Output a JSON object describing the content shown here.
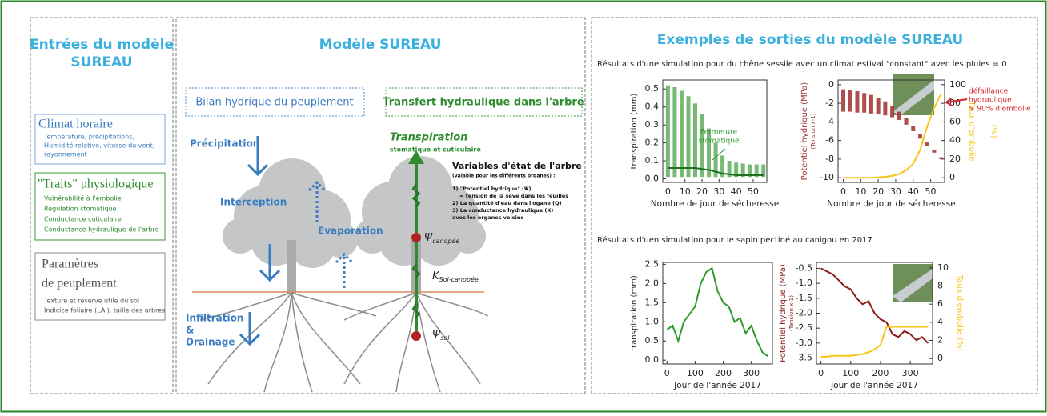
{
  "inputs": {
    "title_lines": [
      "Entrées  du modèle",
      "SUREAU"
    ],
    "climate": {
      "title": "Climat horaire",
      "lines": [
        "Température, précipitations,",
        "Humidité relative, vitesse du vent,",
        "rayonnement"
      ]
    },
    "traits": {
      "title": "\"Traits\" physiologique",
      "lines": [
        "Vulnérabilité à l'embolie",
        "Régulation stomatique",
        "Conductance cuticulaire",
        "Conductance hydraulique de l'arbre"
      ]
    },
    "stand": {
      "title_lines": [
        "Paramètres",
        "de peuplement"
      ],
      "lines": [
        "Texture et réserve utile du sol",
        "Indicice foliaire (LAI), taille des arbres"
      ]
    }
  },
  "model": {
    "title": "Modèle SUREAU",
    "water_balance": "Bilan hydrique du peuplement",
    "hydraulic_transfer": "Transfert hydraulique dans l'arbre",
    "precipitation": "Précipitation",
    "interception": "Interception",
    "evaporation": "Evaporation",
    "infiltration_lines": [
      "Infiltration",
      "&",
      "Drainage"
    ],
    "transpiration": "Transpiration",
    "transpiration_sub": "stomatique et cuticulaire",
    "psi_canopy": {
      "symbol": "Ψ",
      "sub": "canopée"
    },
    "k_soil": {
      "symbol": "K",
      "sub": "Sol-canopée"
    },
    "psi_soil": {
      "symbol": "Ψ",
      "sub": "sol"
    },
    "state_vars": {
      "title": "Variables d'état de l'arbre",
      "subtitle": "(valable pour les différents organes) :",
      "lines": [
        "1) \"Potentiel hydrique\" (Ψ)",
        "    = tension de la sève dans les feuilles",
        "2) La quantité d'eau dans l'ogane (Q)",
        "3) La conductance hydraulique (K)",
        "avec les organes voisins"
      ]
    }
  },
  "outputs": {
    "title": "Exemples de sorties  du modèle SUREAU",
    "oak_caption": "Résultats d'une simulation pour du chêne sessile avec un climat estival \"constant\" avec les pluies  = 0",
    "fir_caption": "Résultats d'uen simulation pour le sapin pectiné au canigou en 2017",
    "charts": [
      {
        "xlabel": "Nombre de jour de sécheresse",
        "ylabel": "transpiration (mm)",
        "xlim": [
          -3,
          58
        ],
        "ylim": [
          -0.02,
          0.55
        ],
        "xticks": [
          0,
          10,
          20,
          30,
          40,
          50
        ],
        "yticks": [
          {
            "value": 0,
            "label": "0.0"
          },
          0.1,
          0.2,
          0.3,
          0.4,
          0.5
        ],
        "x": [
          0,
          4,
          8,
          12,
          16,
          20,
          24,
          28,
          32,
          36,
          40,
          44,
          48,
          52,
          56
        ],
        "range": {
          "color": "#5fae5f",
          "low": [
            0.01,
            0.01,
            0.01,
            0.01,
            0.01,
            0.01,
            0.01,
            0.01,
            0.01,
            0.01,
            0.01,
            0.01,
            0.01,
            0.01,
            0.01
          ],
          "high": [
            0.52,
            0.51,
            0.49,
            0.46,
            0.42,
            0.36,
            0.28,
            0.2,
            0.13,
            0.1,
            0.09,
            0.085,
            0.08,
            0.08,
            0.08
          ]
        },
        "series": [
          {
            "color": "#1f6f1f",
            "values": [
              0.06,
              0.06,
              0.06,
              0.06,
              0.06,
              0.055,
              0.05,
              0.04,
              0.03,
              0.025,
              0.02,
              0.02,
              0.02,
              0.02,
              0.02
            ]
          }
        ],
        "annotation_lines": [
          "Fermeture",
          "stomatique"
        ],
        "annotation_color": "#2e9a2e"
      },
      {
        "xlabel": "Nombre de jour de sécheresse",
        "ylabel": "Potentiel hydrique (MPa)",
        "ylabel_sub": "(Tension x-1)",
        "y2label": "Taux d'embolie",
        "y2label_sub": "(%)",
        "axis_colored": true,
        "xlim": [
          -3,
          58
        ],
        "ylim": [
          -10.5,
          0.5
        ],
        "y2lim": [
          -5,
          105
        ],
        "xticks": [
          0,
          10,
          20,
          30,
          40,
          50
        ],
        "yticks": [
          0,
          -2,
          -4,
          -6,
          -8,
          -10
        ],
        "y2ticks": [
          0,
          20,
          40,
          60,
          80,
          100
        ],
        "x": [
          0,
          4,
          8,
          12,
          16,
          20,
          24,
          28,
          32,
          36,
          40,
          44,
          48,
          52,
          56
        ],
        "range": {
          "color": "#a0302f",
          "low": [
            -2.9,
            -2.9,
            -3.0,
            -3.0,
            -3.1,
            -3.2,
            -3.3,
            -3.5,
            -3.8,
            -4.3,
            -5.0,
            -5.8,
            -6.6,
            -7.3,
            -8.0
          ],
          "high": [
            -0.5,
            -0.6,
            -0.7,
            -0.9,
            -1.1,
            -1.4,
            -1.8,
            -2.3,
            -2.9,
            -3.6,
            -4.4,
            -5.3,
            -6.2,
            -7.0,
            -7.8
          ]
        },
        "series": [
          {
            "color": "#f5c518",
            "axis": "y2",
            "values": [
              0,
              0,
              0,
              0,
              0,
              0.5,
              1,
              2,
              4,
              8,
              15,
              30,
              55,
              75,
              90
            ]
          }
        ],
        "annotation_lines": [
          "défaillance",
          "hydraulique",
          "> 90% d'embolie"
        ],
        "annotation_color": "#d9232a"
      },
      {
        "xlabel": "Jour de l'année 2017",
        "ylabel": "transpiration (mm)",
        "xlim": [
          -15,
          375
        ],
        "ylim": [
          -0.1,
          2.55
        ],
        "xticks": [
          0,
          100,
          200,
          300
        ],
        "yticks": [
          {
            "value": 0,
            "label": "0.0"
          },
          0.5,
          {
            "value": 1,
            "label": "1.0"
          },
          1.5,
          {
            "value": 2,
            "label": "2.0"
          },
          2.5
        ],
        "x": [
          0,
          20,
          40,
          60,
          80,
          100,
          120,
          140,
          160,
          180,
          200,
          220,
          240,
          260,
          280,
          300,
          320,
          340,
          360
        ],
        "series": [
          {
            "color": "#2e9a2e",
            "values": [
              0.8,
              0.9,
              0.5,
              1.0,
              1.2,
              1.4,
              2.0,
              2.3,
              2.4,
              1.8,
              1.5,
              1.4,
              1.0,
              1.1,
              0.7,
              0.9,
              0.5,
              0.2,
              0.1
            ]
          }
        ]
      },
      {
        "xlabel": "Jour de l'année 2017",
        "ylabel": "Potentiel hydrique (MPa)",
        "ylabel_sub": "(Tension x-1)",
        "y2label": "Taux d'embolie (%)",
        "axis_colored": true,
        "xlim": [
          -15,
          375
        ],
        "ylim": [
          -3.7,
          -0.3
        ],
        "y2lim": [
          -0.6,
          10.6
        ],
        "xticks": [
          0,
          100,
          200,
          300
        ],
        "yticks": [
          -0.5,
          {
            "value": -1,
            "label": "-1.0"
          },
          -1.5,
          {
            "value": -2,
            "label": "-2.0"
          },
          -2.5,
          {
            "value": -3,
            "label": "-3.0"
          },
          -3.5
        ],
        "y2ticks": [
          0,
          2,
          4,
          6,
          8,
          10
        ],
        "x": [
          0,
          20,
          40,
          60,
          80,
          100,
          120,
          140,
          160,
          180,
          200,
          220,
          240,
          260,
          280,
          300,
          320,
          340,
          360
        ],
        "series": [
          {
            "color": "#8b1a1a",
            "values": [
              -0.5,
              -0.6,
              -0.7,
              -0.9,
              -1.1,
              -1.2,
              -1.5,
              -1.7,
              -1.6,
              -2.0,
              -2.2,
              -2.3,
              -2.7,
              -2.8,
              -2.6,
              -2.7,
              -2.9,
              -2.8,
              -3.0
            ]
          },
          {
            "color": "#f5c518",
            "axis": "y2",
            "values": [
              0.2,
              0.2,
              0.3,
              0.3,
              0.3,
              0.3,
              0.4,
              0.5,
              0.7,
              1.0,
              1.5,
              3.5,
              3.5,
              3.5,
              3.5,
              3.5,
              3.5,
              3.5,
              3.5
            ]
          }
        ]
      }
    ]
  }
}
